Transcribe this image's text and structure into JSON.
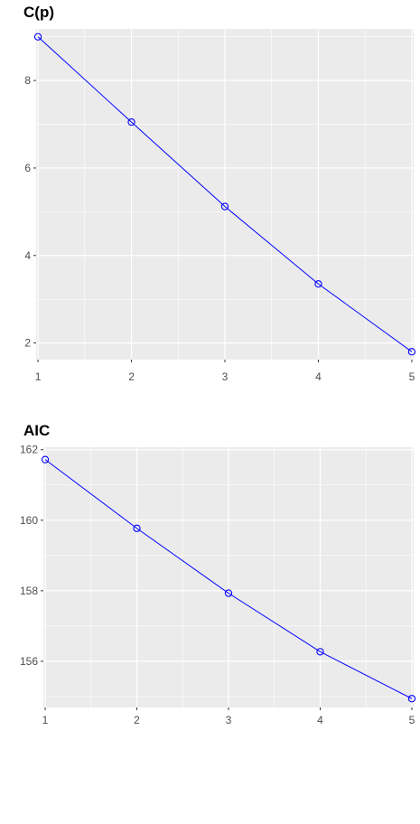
{
  "chart_data": [
    {
      "type": "line",
      "title": "C(p)",
      "xlabel": "",
      "ylabel": "",
      "x": [
        1,
        2,
        3,
        4,
        5
      ],
      "series": [
        {
          "values": [
            9.0,
            7.05,
            5.12,
            3.35,
            1.8
          ]
        }
      ],
      "xlim": [
        0.98,
        5.02
      ],
      "ylim": [
        1.62,
        9.18
      ],
      "xticks": [
        1,
        2,
        3,
        4,
        5
      ],
      "yticks": [
        2,
        4,
        6,
        8
      ],
      "grid": true,
      "colors": {
        "line": "#0000ff",
        "panel": "#ebebeb",
        "grid": "#ffffff"
      }
    },
    {
      "type": "line",
      "title": "AIC",
      "xlabel": "",
      "ylabel": "",
      "x": [
        1,
        2,
        3,
        4,
        5
      ],
      "series": [
        {
          "values": [
            161.72,
            159.77,
            157.93,
            156.27,
            154.94
          ]
        }
      ],
      "xlim": [
        0.98,
        5.02
      ],
      "ylim": [
        154.69,
        162.07
      ],
      "xticks": [
        1,
        2,
        3,
        4,
        5
      ],
      "yticks": [
        156,
        158,
        160,
        162
      ],
      "grid": true,
      "colors": {
        "line": "#0000ff",
        "panel": "#ebebeb",
        "grid": "#ffffff"
      }
    }
  ]
}
